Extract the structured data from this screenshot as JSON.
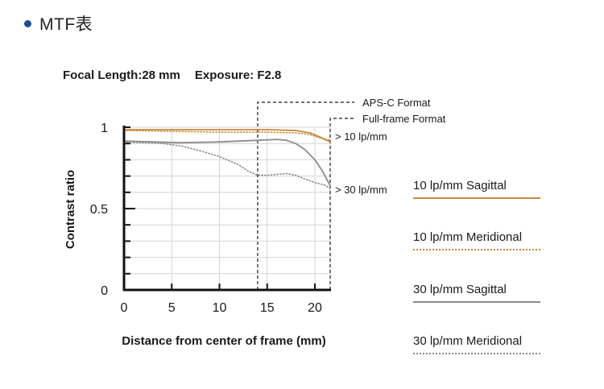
{
  "header": {
    "title": "MTF表"
  },
  "meta": {
    "focal_length": "Focal Length:28 mm",
    "exposure": "Exposure: F2.8"
  },
  "colors": {
    "sagittal_10": "#c88a3c",
    "meridional_10": "#c88a3c",
    "sagittal_30": "#8c8c8c",
    "meridional_30": "#8c8c8c",
    "accent": "#1f4f9a"
  },
  "chart_data": {
    "type": "line",
    "xlabel": "Distance from center of frame (mm)",
    "ylabel": "Contrast ratio",
    "xlim": [
      0,
      21.6
    ],
    "ylim": [
      0,
      1
    ],
    "x_ticks": [
      0,
      5,
      10,
      15,
      20
    ],
    "y_ticks": [
      {
        "value": 0,
        "label": "0"
      },
      {
        "value": 0.5,
        "label": "0.5"
      },
      {
        "value": 1,
        "label": "1"
      }
    ],
    "grid": true,
    "series": [
      {
        "name": "10 lp/mm Sagittal",
        "style": "solid",
        "color": "#c88a3c",
        "x": [
          0,
          5,
          10,
          15,
          18,
          19.5,
          20.5,
          21.6
        ],
        "y": [
          0.985,
          0.985,
          0.985,
          0.985,
          0.98,
          0.965,
          0.94,
          0.91
        ]
      },
      {
        "name": "10 lp/mm Meridional",
        "style": "dotted",
        "color": "#c88a3c",
        "x": [
          0,
          5,
          10,
          15,
          18,
          19.5,
          20.5,
          21.6
        ],
        "y": [
          0.98,
          0.975,
          0.97,
          0.97,
          0.965,
          0.955,
          0.935,
          0.92
        ]
      },
      {
        "name": "30 lp/mm Sagittal",
        "style": "solid",
        "color": "#8c8c8c",
        "x": [
          0,
          3,
          6,
          10,
          14,
          16,
          17,
          18,
          19,
          20,
          20.8,
          21.6
        ],
        "y": [
          0.915,
          0.91,
          0.905,
          0.91,
          0.92,
          0.925,
          0.92,
          0.9,
          0.86,
          0.8,
          0.73,
          0.64
        ]
      },
      {
        "name": "30 lp/mm Meridional",
        "style": "dotted",
        "color": "#8c8c8c",
        "x": [
          0,
          2,
          4,
          6,
          8,
          10,
          12,
          13,
          14,
          15,
          16,
          17,
          18,
          19,
          20,
          21,
          21.6
        ],
        "y": [
          0.91,
          0.905,
          0.9,
          0.885,
          0.855,
          0.82,
          0.77,
          0.73,
          0.705,
          0.705,
          0.71,
          0.715,
          0.705,
          0.68,
          0.66,
          0.645,
          0.625
        ]
      }
    ],
    "annotations": {
      "apsc": {
        "label": "APS-C Format",
        "x": 14
      },
      "fullframe": {
        "label": "Full-frame Format",
        "x": 21.6
      },
      "lp10": "> 10 lp/mm",
      "lp30": "> 30 lp/mm"
    }
  },
  "legend": [
    {
      "label": "10 lp/mm Sagittal",
      "style": "solid",
      "color": "#c88a3c"
    },
    {
      "label": "10 lp/mm Meridional",
      "style": "dotted",
      "color": "#c88a3c"
    },
    {
      "label": "30 lp/mm Sagittal",
      "style": "solid",
      "color": "#8c8c8c"
    },
    {
      "label": "30 lp/mm Meridional",
      "style": "dotted",
      "color": "#8c8c8c"
    }
  ]
}
